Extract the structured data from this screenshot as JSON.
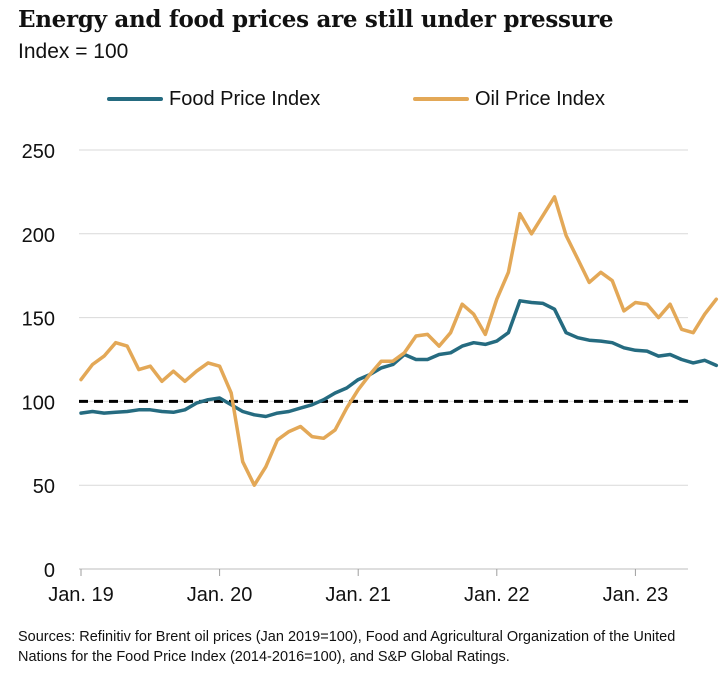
{
  "header": {
    "title": "Energy and food prices are still under pressure",
    "subtitle": "Index = 100"
  },
  "source": "Sources: Refinitiv for Brent oil prices (Jan 2019=100), Food and Agricultural Organization of the United Nations for the Food Price Index (2014-2016=100), and S&P Global Ratings.",
  "colors": {
    "food": "#256b80",
    "oil": "#e3a857",
    "reference": "#000000",
    "grid": "#d9d9d9",
    "text": "#111111"
  },
  "chart_data": {
    "type": "line",
    "title": "Energy and food prices are still under pressure",
    "subtitle": "Index = 100",
    "xlabel": "",
    "ylabel": "",
    "ylim": [
      0,
      250
    ],
    "yticks": [
      0,
      50,
      100,
      150,
      200,
      250
    ],
    "x_tick_labels": [
      "Jan. 19",
      "Jan. 20",
      "Jan. 21",
      "Jan. 22",
      "Jan. 23"
    ],
    "x_start": "Jan. 19",
    "x_frequency": "monthly",
    "grid": "horizontal",
    "legend_position": "top",
    "reference_line": {
      "value": 100,
      "style": "dashed"
    },
    "series": [
      {
        "name": "Food Price Index",
        "color": "#256b80",
        "values": [
          93,
          94,
          93,
          93.5,
          94,
          95,
          95,
          94,
          93.5,
          95,
          99,
          101,
          102,
          98,
          94,
          92,
          91,
          93,
          94,
          96,
          98,
          101,
          105,
          108,
          113,
          116,
          120,
          122,
          128,
          125,
          125,
          128,
          129,
          133,
          135,
          134,
          136,
          141,
          160,
          159,
          158.5,
          155,
          141,
          138,
          136.5,
          136,
          135,
          132,
          130.5,
          130,
          127,
          128,
          125,
          123,
          124.5,
          121.5
        ]
      },
      {
        "name": "Oil Price Index",
        "color": "#e3a857",
        "values": [
          113,
          122,
          127,
          135,
          133,
          119,
          121,
          112,
          118,
          112,
          118,
          123,
          121,
          105,
          64,
          50,
          61,
          77,
          82,
          85,
          79,
          78,
          83,
          96,
          107,
          116,
          124,
          124,
          129,
          139,
          140,
          133,
          141,
          158,
          152,
          140,
          161,
          177,
          212,
          200,
          211,
          222,
          199,
          185,
          171,
          177,
          172,
          154,
          159,
          158,
          150,
          158,
          143,
          141,
          152,
          161
        ]
      }
    ]
  }
}
